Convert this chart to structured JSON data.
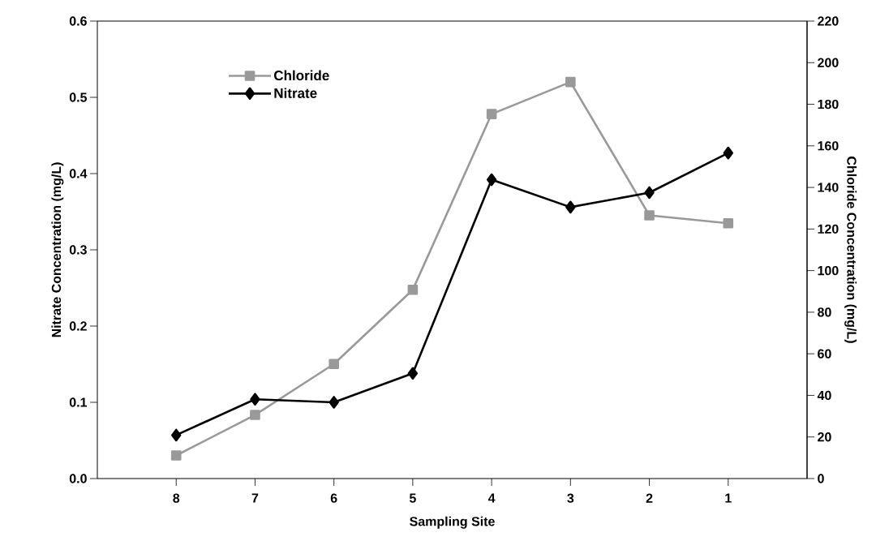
{
  "chart_data": {
    "type": "line",
    "xlabel": "Sampling Site",
    "ylabel": "Nitrate Concentration (mg/L)",
    "y2label": "Chloride Concentration (mg/L)",
    "categories": [
      "8",
      "7",
      "6",
      "5",
      "4",
      "3",
      "2",
      "1"
    ],
    "series": [
      {
        "name": "Chloride",
        "color": "#999999",
        "axis": "y2",
        "marker": "square",
        "values": [
          11.1,
          30.6,
          55.1,
          90.8,
          175.3,
          190.7,
          126.6,
          122.8
        ]
      },
      {
        "name": "Nitrate",
        "color": "#000000",
        "marker": "diamond",
        "values": [
          0.057,
          0.104,
          0.1,
          0.138,
          0.392,
          0.356,
          0.375,
          0.427
        ]
      }
    ],
    "ylim": [
      0,
      0.6
    ],
    "yticks": [
      {
        "value": 0,
        "label": "0.0"
      },
      0.1,
      0.2,
      0.3,
      0.4,
      0.5,
      0.6
    ],
    "y2lim": [
      0,
      220
    ],
    "y2ticks": [
      0,
      20,
      40,
      60,
      80,
      100,
      120,
      140,
      160,
      180,
      200,
      220
    ],
    "legend": "top left",
    "line_style": "solid"
  }
}
